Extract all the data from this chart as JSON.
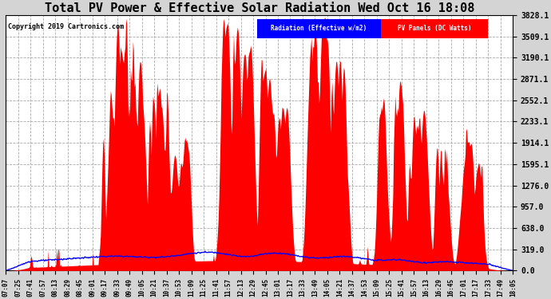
{
  "title": "Total PV Power & Effective Solar Radiation Wed Oct 16 18:08",
  "copyright": "Copyright 2019 Cartronics.com",
  "legend_radiation": "Radiation (Effective w/m2)",
  "legend_pv": "PV Panels (DC Watts)",
  "ylim": [
    0,
    3828.1
  ],
  "yticks": [
    0.0,
    319.0,
    638.0,
    957.0,
    1276.0,
    1595.1,
    1914.1,
    2233.1,
    2552.1,
    2871.1,
    3190.1,
    3509.1,
    3828.1
  ],
  "ytick_labels": [
    "0.0",
    "319.0",
    "638.0",
    "957.0",
    "1276.0",
    "1595.1",
    "1914.1",
    "2233.1",
    "2552.1",
    "2871.1",
    "3190.1",
    "3509.1",
    "3828.1"
  ],
  "background_color": "#d4d4d4",
  "plot_background": "#ffffff",
  "radiation_color": "#0000ff",
  "pv_fill_color": "#ff0000",
  "title_fontsize": 11,
  "legend_radiation_bg": "#0000ff",
  "legend_pv_bg": "#ff0000",
  "x_tick_labels": [
    "07:07",
    "07:25",
    "07:41",
    "07:57",
    "08:13",
    "08:29",
    "08:45",
    "09:01",
    "09:17",
    "09:33",
    "09:49",
    "10:05",
    "10:21",
    "10:37",
    "10:53",
    "11:09",
    "11:25",
    "11:41",
    "11:57",
    "12:13",
    "12:29",
    "12:45",
    "13:01",
    "13:17",
    "13:33",
    "13:49",
    "14:05",
    "14:21",
    "14:37",
    "14:53",
    "15:09",
    "15:25",
    "15:41",
    "15:57",
    "16:13",
    "16:29",
    "16:45",
    "17:01",
    "17:17",
    "17:33",
    "17:49",
    "18:05"
  ],
  "n_points": 660
}
